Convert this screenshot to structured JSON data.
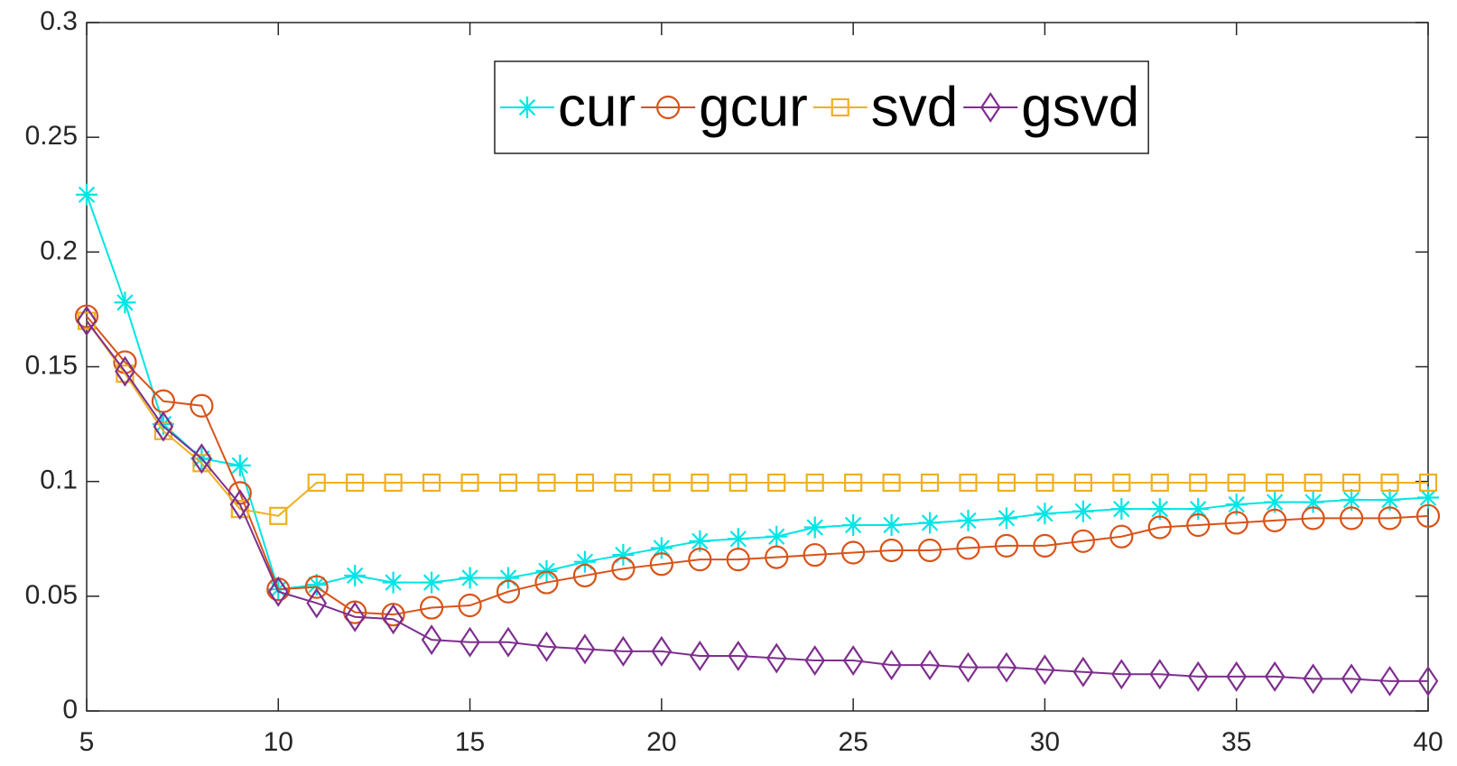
{
  "chart_data": {
    "type": "line",
    "x": [
      5,
      6,
      7,
      8,
      9,
      10,
      11,
      12,
      13,
      14,
      15,
      16,
      17,
      18,
      19,
      20,
      21,
      22,
      23,
      24,
      25,
      26,
      27,
      28,
      29,
      30,
      31,
      32,
      33,
      34,
      35,
      36,
      37,
      38,
      39,
      40
    ],
    "series": [
      {
        "name": "cur",
        "color": "#00e5e5",
        "marker": "asterisk",
        "values": [
          0.225,
          0.178,
          0.125,
          0.11,
          0.107,
          0.053,
          0.055,
          0.059,
          0.056,
          0.056,
          0.058,
          0.058,
          0.061,
          0.065,
          0.068,
          0.071,
          0.074,
          0.075,
          0.076,
          0.08,
          0.081,
          0.081,
          0.082,
          0.083,
          0.084,
          0.086,
          0.087,
          0.088,
          0.088,
          0.088,
          0.09,
          0.091,
          0.091,
          0.092,
          0.092,
          0.093
        ]
      },
      {
        "name": "gcur",
        "color": "#d95319",
        "marker": "circle",
        "values": [
          0.172,
          0.152,
          0.135,
          0.133,
          0.095,
          0.053,
          0.054,
          0.043,
          0.042,
          0.045,
          0.046,
          0.052,
          0.056,
          0.059,
          0.062,
          0.064,
          0.066,
          0.066,
          0.067,
          0.068,
          0.069,
          0.07,
          0.07,
          0.071,
          0.072,
          0.072,
          0.074,
          0.076,
          0.08,
          0.081,
          0.082,
          0.083,
          0.084,
          0.084,
          0.084,
          0.085
        ]
      },
      {
        "name": "svd",
        "color": "#edb120",
        "marker": "square",
        "values": [
          0.17,
          0.147,
          0.122,
          0.108,
          0.088,
          0.085,
          0.0995,
          0.0995,
          0.0995,
          0.0995,
          0.0995,
          0.0995,
          0.0995,
          0.0995,
          0.0995,
          0.0995,
          0.0995,
          0.0995,
          0.0995,
          0.0995,
          0.0995,
          0.0995,
          0.0995,
          0.0995,
          0.0995,
          0.0995,
          0.0995,
          0.0995,
          0.0995,
          0.0995,
          0.0995,
          0.0995,
          0.0995,
          0.0995,
          0.0995,
          0.0995
        ]
      },
      {
        "name": "gsvd",
        "color": "#7e2f8e",
        "marker": "diamond",
        "values": [
          0.17,
          0.148,
          0.124,
          0.11,
          0.09,
          0.052,
          0.047,
          0.041,
          0.04,
          0.031,
          0.03,
          0.03,
          0.028,
          0.027,
          0.026,
          0.026,
          0.024,
          0.024,
          0.023,
          0.022,
          0.022,
          0.02,
          0.02,
          0.019,
          0.019,
          0.018,
          0.017,
          0.016,
          0.016,
          0.015,
          0.015,
          0.015,
          0.014,
          0.014,
          0.013,
          0.013
        ]
      }
    ],
    "xlim": [
      5,
      40
    ],
    "xticks": [
      5,
      10,
      15,
      20,
      25,
      30,
      35,
      40
    ],
    "ylim": [
      0,
      0.3
    ],
    "yticks": [
      0,
      0.05,
      0.1,
      0.15,
      0.2,
      0.25,
      0.3
    ],
    "legend": "top"
  }
}
